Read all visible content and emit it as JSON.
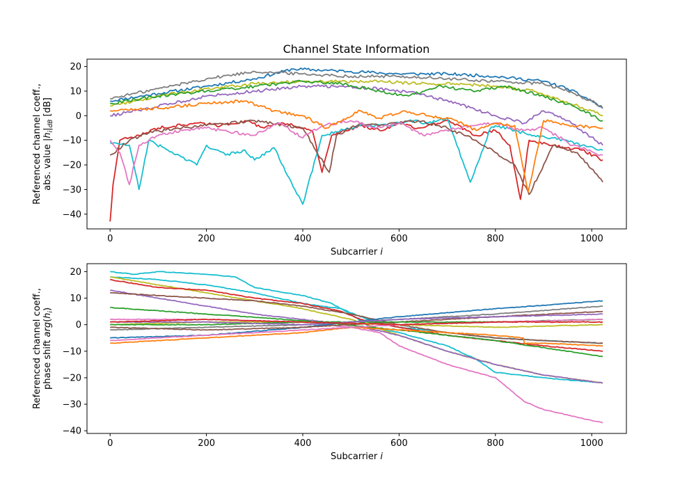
{
  "figure": {
    "title": "Channel State Information"
  },
  "chart_data": [
    {
      "type": "line",
      "title": "Channel State Information",
      "xlabel": "Subcarrier i",
      "ylabel_lines": [
        "Referenced channel coeff.,",
        "abs. value |h_i|_dB [dB]"
      ],
      "xlim": [
        -48,
        1072
      ],
      "ylim": [
        -46,
        23
      ],
      "xticks": [
        0,
        200,
        400,
        600,
        800,
        1000
      ],
      "yticks": [
        -40,
        -30,
        -20,
        -10,
        0,
        10,
        20
      ],
      "grid": false,
      "colors": [
        "#1f77b4",
        "#ff7f0e",
        "#2ca02c",
        "#d62728",
        "#9467bd",
        "#8c564b",
        "#e377c2",
        "#7f7f7f",
        "#bcbd22",
        "#17becf"
      ],
      "series": [
        {
          "color": "#1f77b4",
          "x": [
            0,
            100,
            200,
            300,
            380,
            500,
            600,
            700,
            800,
            900,
            950,
            1000,
            1023
          ],
          "values": [
            6,
            9,
            12,
            15,
            19,
            18,
            17,
            17,
            16,
            14,
            11,
            6,
            3
          ]
        },
        {
          "color": "#7f7f7f",
          "x": [
            0,
            100,
            200,
            300,
            400,
            500,
            600,
            700,
            800,
            900,
            950,
            1000,
            1023
          ],
          "values": [
            7,
            11,
            15,
            18,
            17,
            16,
            16,
            15,
            14,
            13,
            10,
            6,
            3
          ]
        },
        {
          "color": "#9467bd",
          "x": [
            0,
            80,
            200,
            300,
            400,
            480,
            560,
            640,
            720,
            800,
            860,
            900,
            950,
            1023
          ],
          "values": [
            0,
            3,
            8,
            10,
            12,
            12,
            11,
            9,
            5,
            0,
            -3,
            2,
            -2,
            -12
          ]
        },
        {
          "color": "#d62728",
          "x": [
            0,
            6,
            20,
            60,
            100,
            180,
            230,
            280,
            320,
            360,
            420,
            440,
            460,
            520,
            560,
            600,
            640,
            700,
            760,
            800,
            830,
            852,
            870,
            920,
            980,
            1023
          ],
          "values": [
            -43,
            -28,
            -10,
            -8,
            -5,
            -3,
            -4,
            -2,
            -5,
            -3,
            -6,
            -23,
            -8,
            -4,
            -6,
            -3,
            -5,
            -2,
            -8,
            -6,
            -12,
            -34,
            -10,
            -12,
            -14,
            -18
          ]
        },
        {
          "color": "#17becf",
          "x": [
            0,
            40,
            60,
            80,
            120,
            180,
            200,
            240,
            280,
            300,
            340,
            400,
            440,
            520,
            580,
            620,
            660,
            700,
            748,
            790,
            800,
            840,
            880,
            920,
            980,
            1023
          ],
          "values": [
            -11,
            -12,
            -30,
            -10,
            -14,
            -20,
            -12,
            -16,
            -14,
            -18,
            -13,
            -36,
            -8,
            -4,
            -4,
            -2,
            -3,
            -1,
            -27,
            -5,
            -4,
            -6,
            -8,
            -9,
            -12,
            -14
          ]
        },
        {
          "color": "#8c564b",
          "x": [
            0,
            40,
            80,
            140,
            200,
            300,
            400,
            455,
            470,
            520,
            560,
            600,
            640,
            700,
            760,
            800,
            840,
            870,
            920,
            970,
            1023
          ],
          "values": [
            -16,
            -10,
            -7,
            -5,
            -4,
            -2,
            -5,
            -23,
            -8,
            -3,
            -4,
            -3,
            -2,
            -5,
            -10,
            -15,
            -20,
            -32,
            -12,
            -15,
            -27
          ]
        },
        {
          "color": "#e377c2",
          "x": [
            0,
            20,
            40,
            60,
            100,
            150,
            200,
            300,
            350,
            400,
            440,
            500,
            550,
            600,
            650,
            700,
            750,
            800,
            850,
            900,
            960,
            1023
          ],
          "values": [
            -10,
            -15,
            -28,
            -12,
            -8,
            -6,
            -5,
            -8,
            -3,
            -9,
            -4,
            -2,
            -5,
            -3,
            -8,
            -6,
            -4,
            -3,
            -6,
            -5,
            -12,
            -16
          ]
        },
        {
          "color": "#bcbd22",
          "x": [
            0,
            100,
            200,
            300,
            400,
            480,
            560,
            640,
            720,
            800,
            880,
            940,
            1000,
            1023
          ],
          "values": [
            4,
            8,
            11,
            13,
            14,
            14,
            14,
            13,
            13,
            12,
            10,
            6,
            2,
            0
          ]
        },
        {
          "color": "#2ca02c",
          "x": [
            0,
            100,
            200,
            300,
            400,
            480,
            560,
            620,
            680,
            760,
            820,
            900,
            960,
            1023
          ],
          "values": [
            5,
            8,
            10,
            12,
            14,
            13,
            10,
            8,
            12,
            10,
            12,
            8,
            4,
            -2
          ]
        },
        {
          "color": "#ff7f0e",
          "x": [
            0,
            100,
            200,
            280,
            340,
            400,
            450,
            520,
            560,
            610,
            660,
            720,
            760,
            800,
            840,
            868,
            900,
            960,
            1023
          ],
          "values": [
            2,
            3,
            5,
            6,
            2,
            0,
            -5,
            2,
            -1,
            2,
            0,
            -2,
            -6,
            -3,
            -4,
            -31,
            -2,
            -4,
            -5
          ]
        }
      ]
    },
    {
      "type": "line",
      "title": "",
      "xlabel": "Subcarrier i",
      "ylabel_lines": [
        "Referenced channel coeff.,",
        "phase shift arg(h_i)"
      ],
      "xlim": [
        -48,
        1072
      ],
      "ylim": [
        -41,
        23
      ],
      "xticks": [
        0,
        200,
        400,
        600,
        800,
        1000
      ],
      "yticks": [
        -40,
        -30,
        -20,
        -10,
        0,
        10,
        20
      ],
      "grid": false,
      "colors": [
        "#1f77b4",
        "#ff7f0e",
        "#2ca02c",
        "#d62728",
        "#9467bd",
        "#8c564b",
        "#e377c2",
        "#7f7f7f",
        "#bcbd22",
        "#17becf"
      ],
      "series": [
        {
          "color": "#17becf",
          "x": [
            0,
            50,
            100,
            200,
            260,
            300,
            400,
            460,
            500,
            540,
            600,
            660,
            700,
            760,
            800,
            900,
            1023
          ],
          "values": [
            20,
            19,
            20,
            19,
            18,
            14,
            11,
            8,
            4,
            -1,
            -3,
            -6,
            -8,
            -13,
            -18,
            -20,
            -22
          ]
        },
        {
          "color": "#17becf",
          "x": [
            0,
            100,
            200,
            300,
            400,
            480,
            520,
            560,
            600,
            700,
            800,
            900,
            1023
          ],
          "values": [
            18,
            17,
            15,
            12,
            8,
            6,
            3,
            1,
            -1,
            -3,
            -5,
            -6,
            -7
          ]
        },
        {
          "color": "#bcbd22",
          "x": [
            0,
            100,
            200,
            300,
            400,
            500,
            600,
            700,
            800,
            900,
            1023
          ],
          "values": [
            18,
            15,
            12,
            9,
            6,
            2,
            -4,
            -10,
            -15,
            -19,
            -22
          ]
        },
        {
          "color": "#d62728",
          "x": [
            0,
            100,
            200,
            300,
            400,
            480,
            520,
            600,
            700,
            800,
            900,
            1023
          ],
          "values": [
            17,
            14,
            13,
            10,
            8,
            5,
            2,
            -1,
            -4,
            -6,
            -8,
            -10
          ]
        },
        {
          "color": "#9467bd",
          "x": [
            0,
            100,
            200,
            300,
            400,
            500,
            600,
            700,
            800,
            900,
            1023
          ],
          "values": [
            13,
            10,
            7,
            4,
            2,
            0,
            -4,
            -10,
            -15,
            -19,
            -22
          ]
        },
        {
          "color": "#8c564b",
          "x": [
            0,
            100,
            200,
            300,
            400,
            500,
            600,
            700,
            800,
            900,
            1023
          ],
          "values": [
            12,
            11,
            10,
            9,
            7,
            4,
            0,
            -3,
            -5,
            -6,
            -7
          ]
        },
        {
          "color": "#2ca02c",
          "x": [
            0,
            200,
            400,
            600,
            800,
            1023
          ],
          "values": [
            6.5,
            4,
            1.5,
            -2,
            -6,
            -12
          ]
        },
        {
          "color": "#e377c2",
          "x": [
            0,
            200,
            400,
            500,
            560,
            600,
            700,
            800,
            860,
            900,
            1023
          ],
          "values": [
            2,
            2,
            1,
            -1,
            -3,
            -8,
            -15,
            -20,
            -29,
            -32,
            -37
          ]
        },
        {
          "color": "#1f77b4",
          "x": [
            0,
            200,
            400,
            500,
            600,
            800,
            1023
          ],
          "values": [
            -5,
            -4,
            -1,
            1,
            3,
            6,
            9
          ]
        },
        {
          "color": "#ff7f0e",
          "x": [
            0,
            200,
            400,
            500,
            600,
            700,
            800,
            858,
            860,
            900,
            1023
          ],
          "values": [
            -7,
            -5,
            -3,
            -1,
            -2,
            -3,
            -4,
            -5,
            -7,
            -7,
            -8
          ]
        },
        {
          "color": "#7f7f7f",
          "x": [
            0,
            200,
            400,
            600,
            800,
            1023
          ],
          "values": [
            -2,
            -1,
            0,
            2,
            4,
            7
          ]
        },
        {
          "color": "#8c564b",
          "x": [
            0,
            200,
            400,
            600,
            800,
            1023
          ],
          "values": [
            -1,
            -2,
            -1,
            1,
            3,
            5
          ]
        },
        {
          "color": "#bcbd22",
          "x": [
            0,
            200,
            400,
            600,
            800,
            1023
          ],
          "values": [
            0,
            1,
            1,
            0,
            -1,
            0
          ]
        },
        {
          "color": "#2ca02c",
          "x": [
            0,
            200,
            400,
            600,
            800,
            1023
          ],
          "values": [
            0,
            0,
            1,
            1,
            1,
            2
          ]
        },
        {
          "color": "#9467bd",
          "x": [
            0,
            200,
            400,
            600,
            800,
            1023
          ],
          "values": [
            1,
            1,
            0,
            2,
            3,
            4
          ]
        },
        {
          "color": "#e377c2",
          "x": [
            0,
            200,
            400,
            600,
            800,
            1023
          ],
          "values": [
            -6,
            -4,
            -2,
            0,
            1,
            2
          ]
        },
        {
          "color": "#d62728",
          "x": [
            0,
            200,
            400,
            600,
            800,
            1023
          ],
          "values": [
            1,
            2,
            1,
            0,
            1,
            1
          ]
        }
      ]
    }
  ]
}
